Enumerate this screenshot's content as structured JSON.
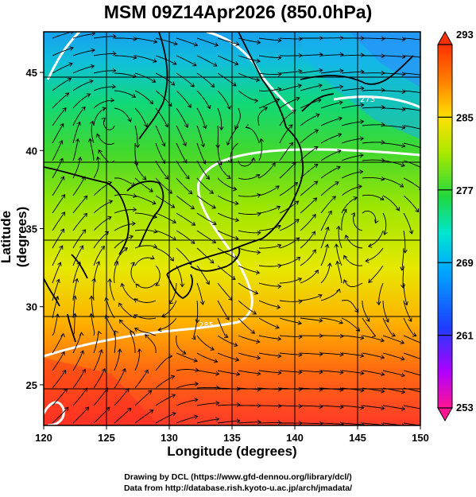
{
  "title": "MSM 09Z14Apr2026 (850.0hPa)",
  "axes": {
    "xlabel": "Longitude (degrees)",
    "ylabel": "Latitude  (degrees)",
    "xlim": [
      120,
      150
    ],
    "ylim": [
      22.4,
      47.6
    ],
    "xticks": [
      "120",
      "125",
      "130",
      "135",
      "140",
      "145",
      "150"
    ],
    "yticks": [
      "25",
      "30",
      "35",
      "40",
      "45"
    ]
  },
  "colorbar": {
    "min": 253,
    "max": 293,
    "tick_labels": [
      "293",
      "285",
      "277",
      "269",
      "261",
      "253"
    ],
    "colors": [
      "#ff1493",
      "#b000ff",
      "#1e3cff",
      "#00a8ff",
      "#00e5d0",
      "#20d840",
      "#a8e800",
      "#ffe000",
      "#ff8000",
      "#ff3000"
    ]
  },
  "map": {
    "variable": "temperature",
    "units": "K",
    "contour_labels": [
      "273",
      "285",
      "273"
    ]
  },
  "credits": {
    "line1": "Drawing by DCL (https://www.gfd-dennou.org/library/dcl/)",
    "line2": "Data from http://database.rish.kyoto-u.ac.jp/arch/jmadata/"
  }
}
